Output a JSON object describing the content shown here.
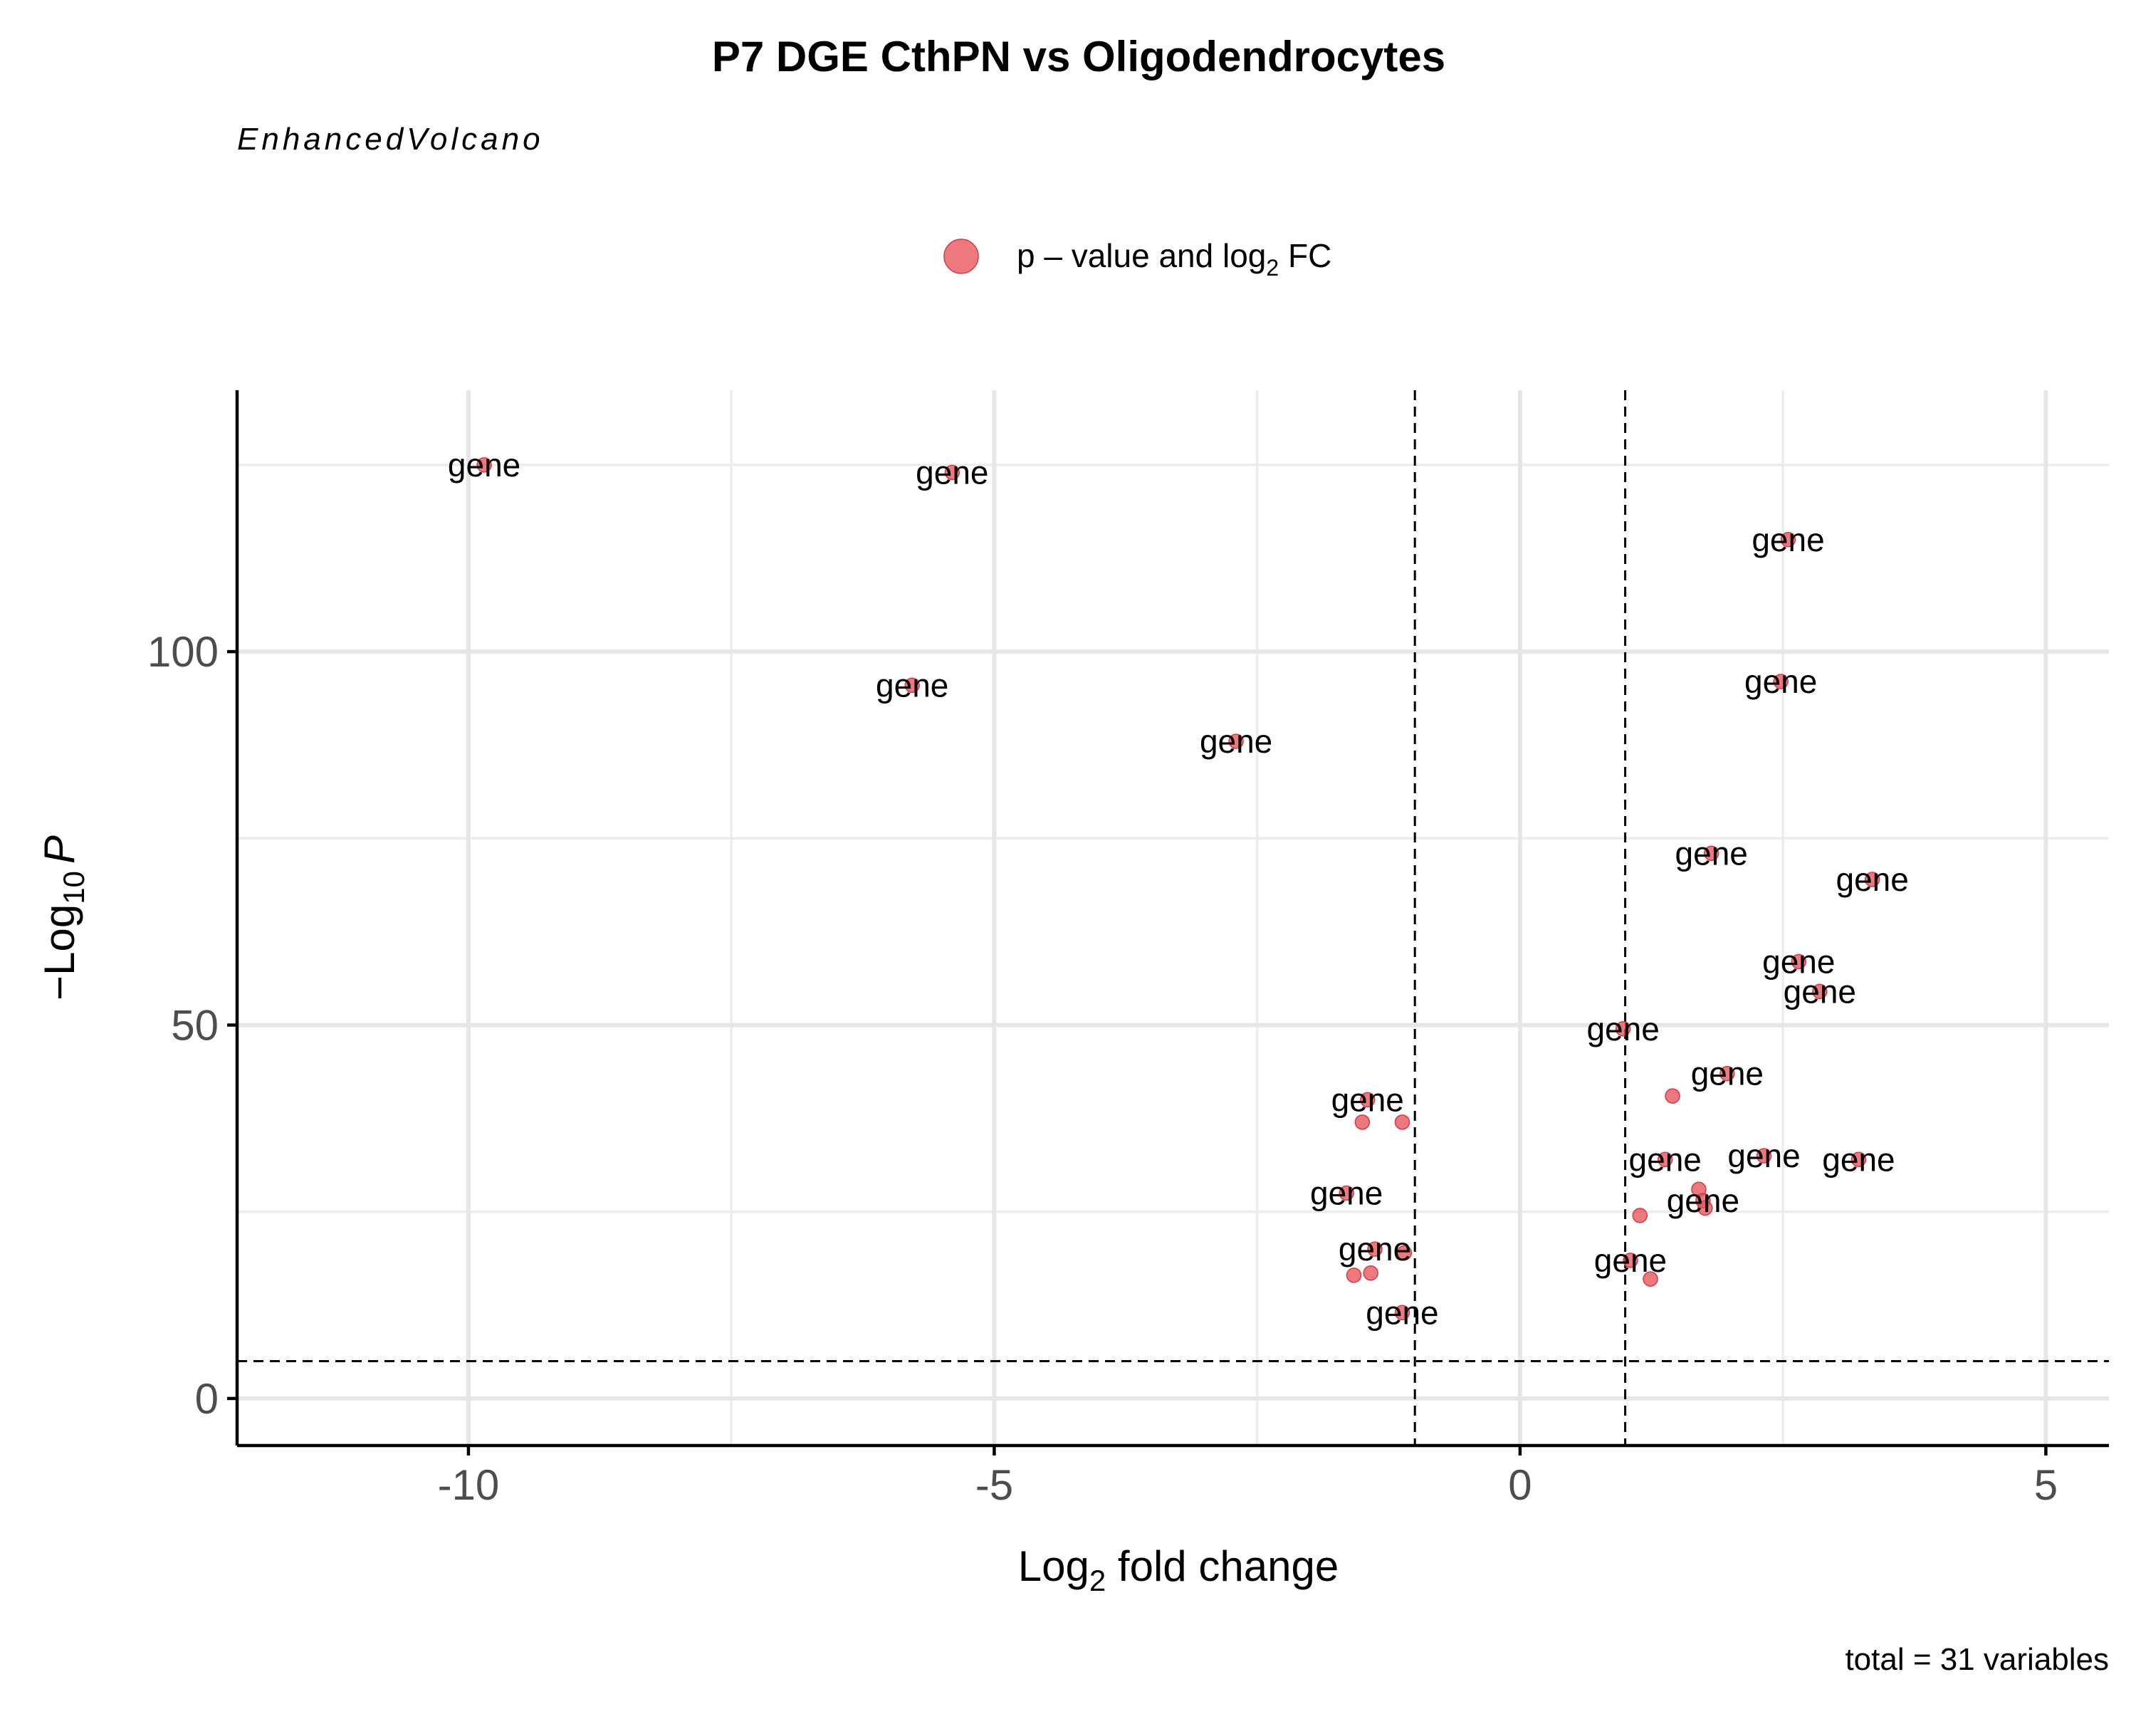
{
  "chart_data": {
    "type": "scatter",
    "title": "P7 DGE CthPN vs Oligodendrocytes",
    "subtitle": "EnhancedVolcano",
    "xlabel": {
      "base": "Log",
      "sub": "2",
      "rest": " fold change"
    },
    "ylabel": {
      "prefix": "−Log",
      "sub": "10",
      "italic": "P"
    },
    "xlim": [
      -12.2,
      5.6
    ],
    "ylim": [
      -6.3,
      135
    ],
    "x_ticks": [
      -10,
      -5,
      0,
      5
    ],
    "x_tick_labels": [
      "-10",
      "-5",
      "0",
      "5"
    ],
    "y_ticks": [
      0,
      50,
      100
    ],
    "y_tick_labels": [
      "0",
      "50",
      "100"
    ],
    "x_minor": [
      -7.5,
      -2.5,
      2.5
    ],
    "y_minor": [
      25,
      75,
      125
    ],
    "grid": true,
    "fc_cutoffs": [
      -1,
      1
    ],
    "p_cutoff_neglog10": 5,
    "legend": {
      "position": "top",
      "entry": {
        "base": "p – value and log",
        "sub": "2",
        "rest": " FC"
      },
      "color": "#e8525a"
    },
    "caption": "total = 31 variables",
    "points": [
      {
        "x": -9.85,
        "y": 125.0,
        "label": "gene"
      },
      {
        "x": -5.4,
        "y": 124.0,
        "label": "gene"
      },
      {
        "x": -5.78,
        "y": 95.5,
        "label": "gene"
      },
      {
        "x": -2.7,
        "y": 88.0,
        "label": "gene"
      },
      {
        "x": -1.45,
        "y": 40.0,
        "label": "gene"
      },
      {
        "x": -1.5,
        "y": 37.0,
        "label": ""
      },
      {
        "x": -1.12,
        "y": 37.0,
        "label": ""
      },
      {
        "x": -1.65,
        "y": 27.5,
        "label": "gene"
      },
      {
        "x": -1.38,
        "y": 20.0,
        "label": "gene"
      },
      {
        "x": -1.1,
        "y": 19.5,
        "label": ""
      },
      {
        "x": -1.58,
        "y": 16.5,
        "label": ""
      },
      {
        "x": -1.42,
        "y": 16.8,
        "label": ""
      },
      {
        "x": -1.12,
        "y": 11.5,
        "label": "gene"
      },
      {
        "x": 2.55,
        "y": 115.0,
        "label": "gene"
      },
      {
        "x": 2.48,
        "y": 96.0,
        "label": "gene"
      },
      {
        "x": 1.82,
        "y": 73.0,
        "label": "gene"
      },
      {
        "x": 3.35,
        "y": 69.5,
        "label": "gene"
      },
      {
        "x": 2.65,
        "y": 58.5,
        "label": "gene"
      },
      {
        "x": 2.85,
        "y": 54.5,
        "label": "gene"
      },
      {
        "x": 0.98,
        "y": 49.5,
        "label": "gene"
      },
      {
        "x": 1.97,
        "y": 43.5,
        "label": "gene"
      },
      {
        "x": 1.45,
        "y": 40.5,
        "label": ""
      },
      {
        "x": 1.38,
        "y": 32.0,
        "label": "gene"
      },
      {
        "x": 2.32,
        "y": 32.5,
        "label": "gene"
      },
      {
        "x": 3.22,
        "y": 32.0,
        "label": "gene"
      },
      {
        "x": 1.7,
        "y": 28.0,
        "label": ""
      },
      {
        "x": 1.74,
        "y": 26.5,
        "label": "gene"
      },
      {
        "x": 1.14,
        "y": 24.5,
        "label": ""
      },
      {
        "x": 1.05,
        "y": 18.5,
        "label": "gene"
      },
      {
        "x": 1.24,
        "y": 16.0,
        "label": ""
      },
      {
        "x": 1.76,
        "y": 25.5,
        "label": ""
      }
    ]
  }
}
